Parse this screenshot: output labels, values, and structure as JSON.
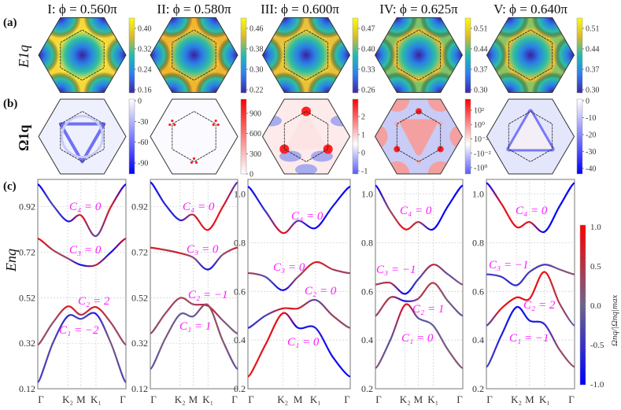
{
  "columns": [
    {
      "title": "I: ϕ = 0.560π"
    },
    {
      "title": "II: ϕ = 0.580π"
    },
    {
      "title": "III: ϕ = 0.600π"
    },
    {
      "title": "IV: ϕ = 0.625π"
    },
    {
      "title": "V: ϕ = 0.640π"
    }
  ],
  "panel_labels": {
    "a": "(a)",
    "b": "(b)",
    "c": "(c)"
  },
  "row_labels": {
    "a": "E1q",
    "b": "Ω1q",
    "c": "Enq"
  },
  "colorbars_a": [
    {
      "ticks": [
        "0.40",
        "0.32",
        "0.24",
        "0.16"
      ]
    },
    {
      "ticks": [
        "0.46",
        "0.38",
        "0.30",
        "0.22"
      ]
    },
    {
      "ticks": [
        "0.47",
        "0.40",
        "0.33",
        "0.26"
      ]
    },
    {
      "ticks": [
        "0.51",
        "0.44",
        "0.37",
        "0.30"
      ]
    },
    {
      "ticks": [
        "0.51",
        "0.44",
        "0.37",
        "0.30"
      ]
    }
  ],
  "colorbars_b": [
    {
      "ticks": [
        "0",
        "-30",
        "-60",
        "-90"
      ],
      "colormap": "blue-white"
    },
    {
      "ticks": [
        "900",
        "600",
        "300",
        "0"
      ],
      "colormap": "white-red"
    },
    {
      "ticks": [
        "2",
        "1",
        "0",
        "-1"
      ],
      "colormap": "blue-white-red"
    },
    {
      "ticks": [
        "10²",
        "10⁰",
        "10⁻²",
        "-10⁻²",
        "-10⁰"
      ],
      "colormap": "blue-white-red"
    },
    {
      "ticks": [
        "0",
        "-10",
        "-20",
        "-30",
        "-40"
      ],
      "colormap": "blue-white"
    }
  ],
  "colorbar_c": {
    "label": "Ωnq/|Ωnq|max",
    "ticks": [
      "1.0",
      "0.5",
      "0.0",
      "-0.5",
      "-1.0"
    ],
    "colors": {
      "pos": "#ff0000",
      "zero": "#6e648c",
      "neg": "#0000ff"
    }
  },
  "chart_data": [
    {
      "type": "line",
      "xticks": [
        "Γ",
        "K₂",
        "M",
        "K₁",
        "Γ"
      ],
      "ylim": [
        0.12,
        1.04
      ],
      "yticks": [
        "0.12",
        "0.32",
        "0.52",
        "0.72",
        "0.92"
      ],
      "ylabel": "Enq",
      "grid": true,
      "bands": [
        {
          "values": [
            1.018,
            0.928,
            0.856,
            0.882,
            0.791,
            0.92,
            1.018
          ],
          "berry": [
            -1,
            -0.3,
            -0.8,
            0.8,
            -0.3,
            0.8,
            -1
          ],
          "label": "C₄ = 0"
        },
        {
          "values": [
            0.78,
            0.73,
            0.693,
            0.664,
            0.664,
            0.72,
            0.78
          ],
          "berry": [
            0.9,
            0.4,
            0.3,
            -0.9,
            0.6,
            -0.9,
            0.9
          ],
          "label": "C₃ = 0"
        },
        {
          "values": [
            0.314,
            0.41,
            0.482,
            0.445,
            0.479,
            0.41,
            0.314
          ],
          "berry": [
            0.3,
            0.2,
            0.8,
            0.4,
            0.8,
            0.3,
            0.3
          ],
          "label": "C₂ = 2"
        },
        {
          "values": [
            0.149,
            0.32,
            0.439,
            0.427,
            0.449,
            0.32,
            0.149
          ],
          "berry": [
            -0.4,
            -0.3,
            -0.6,
            -0.3,
            -0.7,
            0.1,
            -0.4
          ],
          "label": "C₁ = −2"
        }
      ]
    },
    {
      "type": "line",
      "xticks": [
        "Γ",
        "K₂",
        "M",
        "K₁",
        "Γ"
      ],
      "ylim": [
        0.12,
        1.04
      ],
      "yticks": [
        "0.12",
        "0.32",
        "0.52",
        "0.72",
        "0.92"
      ],
      "grid": true,
      "bands": [
        {
          "values": [
            1.027,
            0.93,
            0.861,
            0.885,
            0.818,
            0.92,
            1.027
          ],
          "berry": [
            -1,
            -0.6,
            -0.7,
            0.6,
            0.9,
            0.8,
            -0.4
          ],
          "label": "C₄ = 0"
        },
        {
          "values": [
            0.74,
            0.73,
            0.716,
            0.697,
            0.644,
            0.71,
            0.74
          ],
          "berry": [
            0.8,
            0.5,
            0.7,
            0.2,
            -0.9,
            0.2,
            0.7
          ],
          "label": "C₃ = 0"
        },
        {
          "values": [
            0.363,
            0.45,
            0.519,
            0.491,
            0.484,
            0.42,
            0.363
          ],
          "berry": [
            0.3,
            0.3,
            0.4,
            0.3,
            0.8,
            0.1,
            0.1
          ],
          "label": "C₂ = −1"
        },
        {
          "values": [
            0.207,
            0.34,
            0.447,
            0.438,
            0.488,
            0.33,
            0.207
          ],
          "berry": [
            -0.2,
            0.1,
            -0.1,
            -0.1,
            0.3,
            0.2,
            -0.2
          ],
          "label": "C₁ = 1"
        }
      ]
    },
    {
      "type": "line",
      "xticks": [
        "Γ",
        "K₂",
        "M",
        "K₁",
        "Γ"
      ],
      "ylim": [
        0.2,
        1.06
      ],
      "yticks": [
        "0.2",
        "0.4",
        "0.6",
        "0.8",
        "1.0"
      ],
      "grid": true,
      "bands": [
        {
          "values": [
            1.03,
            0.93,
            0.84,
            0.89,
            0.86,
            0.95,
            1.03
          ],
          "berry": [
            -1,
            -0.5,
            0.9,
            -0.4,
            -1,
            -0.8,
            -1
          ],
          "label": "C₄ = 0"
        },
        {
          "values": [
            0.675,
            0.66,
            0.605,
            0.66,
            0.72,
            0.69,
            0.675
          ],
          "berry": [
            0.5,
            -0.2,
            -0.9,
            0.3,
            0.8,
            0.4,
            0.3
          ],
          "label": "C₃ = 0"
        },
        {
          "values": [
            0.45,
            0.5,
            0.53,
            0.53,
            0.565,
            0.5,
            0.45
          ],
          "berry": [
            -0.5,
            -0.4,
            0.8,
            0.7,
            -0.3,
            0.4,
            0.2
          ],
          "label": "C₂ = 0"
        },
        {
          "values": [
            0.25,
            0.38,
            0.51,
            0.45,
            0.45,
            0.33,
            0.25
          ],
          "berry": [
            0.8,
            0.8,
            0.9,
            -0.9,
            -0.7,
            -0.9,
            -1
          ],
          "label": "C₁ = 0"
        }
      ]
    },
    {
      "type": "line",
      "xticks": [
        "Γ",
        "K₂",
        "M",
        "K₁",
        "Γ"
      ],
      "ylim": [
        0.2,
        1.06
      ],
      "yticks": [
        "0.2",
        "0.4",
        "0.6",
        "0.8",
        "1.0"
      ],
      "grid": true,
      "bands": [
        {
          "values": [
            1.035,
            0.93,
            0.855,
            0.885,
            0.855,
            0.95,
            1.035
          ],
          "berry": [
            -1,
            0.3,
            0.9,
            0.4,
            -1,
            -0.9,
            -1
          ],
          "label": "C₄ = 0"
        },
        {
          "values": [
            0.628,
            0.635,
            0.59,
            0.65,
            0.71,
            0.67,
            0.628
          ],
          "berry": [
            0.4,
            0.5,
            -1,
            -0.3,
            0.6,
            -0.2,
            0.3
          ],
          "label": "C₃ = −1"
        },
        {
          "values": [
            0.5,
            0.575,
            0.56,
            0.57,
            0.635,
            0.56,
            0.5
          ],
          "berry": [
            0.3,
            0.5,
            -0.9,
            0.4,
            0.5,
            0.1,
            -0.2
          ],
          "label": "C₂ = 1"
        },
        {
          "values": [
            0.285,
            0.4,
            0.545,
            0.49,
            0.46,
            0.36,
            0.285
          ],
          "berry": [
            0.2,
            -0.2,
            0.9,
            -0.2,
            -0.1,
            0.1,
            0.2
          ],
          "label": "C₁ = 0"
        }
      ]
    },
    {
      "type": "line",
      "xticks": [
        "Γ",
        "K₂",
        "M",
        "K₁",
        "Γ"
      ],
      "ylim": [
        0.2,
        1.06
      ],
      "yticks": [
        "0.2",
        "0.4",
        "0.6",
        "0.8",
        "1.0"
      ],
      "grid": true,
      "bands": [
        {
          "values": [
            1.045,
            0.96,
            0.865,
            0.885,
            0.845,
            0.95,
            1.045
          ],
          "berry": [
            -1,
            0.8,
            0.9,
            0.7,
            -1,
            -1,
            -1
          ],
          "label": "C₄ = 0"
        },
        {
          "values": [
            0.67,
            0.66,
            0.625,
            0.68,
            0.71,
            0.69,
            0.67
          ],
          "berry": [
            -0.3,
            -0.5,
            -0.6,
            -0.4,
            -0.4,
            0.1,
            0.2
          ],
          "label": "C₃ = −1"
        },
        {
          "values": [
            0.46,
            0.53,
            0.575,
            0.57,
            0.68,
            0.55,
            0.46
          ],
          "berry": [
            -0.3,
            0.8,
            0.9,
            0.8,
            0.9,
            0.4,
            -0.2
          ],
          "label": "C₂ = 2"
        },
        {
          "values": [
            0.29,
            0.42,
            0.535,
            0.48,
            0.465,
            0.36,
            0.29
          ],
          "berry": [
            -0.4,
            -0.7,
            -0.9,
            -0.8,
            -0.6,
            0.3,
            0.2
          ],
          "label": "C₁ = −1"
        }
      ]
    }
  ]
}
